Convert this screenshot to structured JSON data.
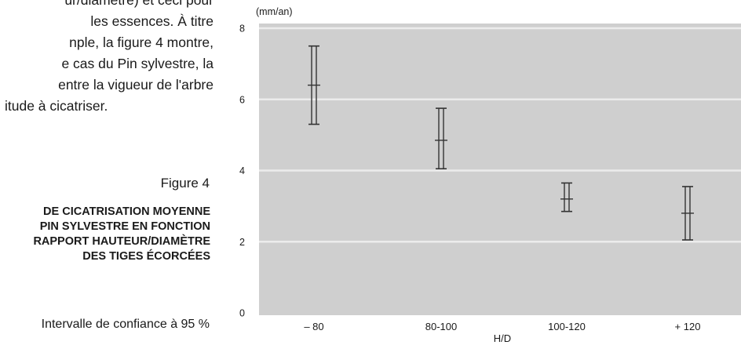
{
  "body_text": {
    "lines": [
      "ur/diamètre) et ceci pour",
      "les essences. À titre",
      "nple, la figure 4 montre,",
      "e cas du Pin sylvestre, la",
      "entre la vigueur de l'arbre",
      "itude à cicatriser."
    ]
  },
  "figure": {
    "label": "Figure 4",
    "title_lines": [
      "DE CICATRISATION MOYENNE",
      "PIN SYLVESTRE EN FONCTION",
      "RAPPORT HAUTEUR/DIAMÈTRE",
      "DES TIGES ÉCORCÉES"
    ],
    "note": "Intervalle de confiance à 95 %"
  },
  "colors": {
    "plot_background": "#cfcfcf",
    "gridline": "#ececec",
    "marker": "#333333"
  },
  "chart_data": {
    "type": "scatter",
    "title": "",
    "ylabel": "(mm/an)",
    "xlabel": "H/D",
    "categories": [
      "– 80",
      "80-100",
      "100-120",
      "+ 120"
    ],
    "ylim": [
      0,
      8
    ],
    "yticks": [
      0,
      2,
      4,
      6,
      8
    ],
    "grid": true,
    "series": [
      {
        "mean": [
          6.4,
          4.85,
          3.2,
          2.8
        ],
        "lower": [
          5.3,
          4.05,
          2.85,
          2.05
        ],
        "upper": [
          7.5,
          5.75,
          3.65,
          3.55
        ]
      }
    ]
  }
}
